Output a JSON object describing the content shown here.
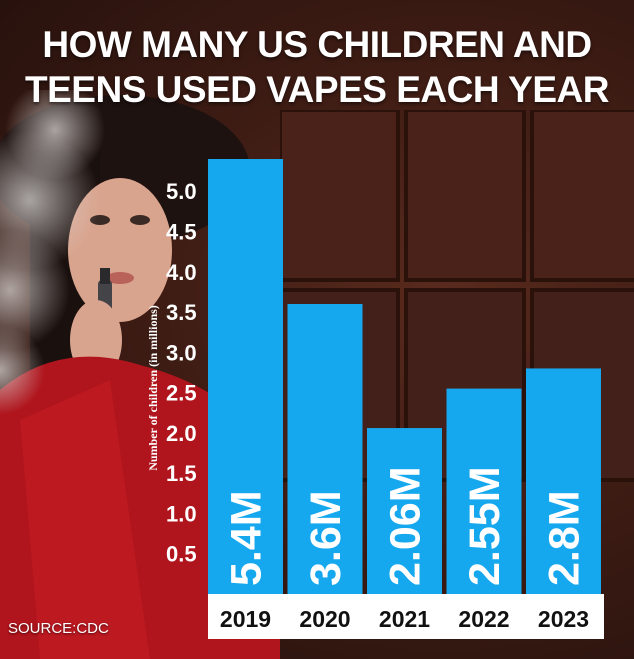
{
  "title": "HOW MANY US CHILDREN AND TEENS USED VAPES EACH YEAR",
  "source": "SOURCE:CDC",
  "colors": {
    "bar": "#16a8ee",
    "axis_band": "#ffffff",
    "text": "#ffffff",
    "year_text": "#111111"
  },
  "chart_data": {
    "type": "bar",
    "title": "HOW MANY US CHILDREN AND TEENS USED VAPES EACH YEAR",
    "categories": [
      "2019",
      "2020",
      "2021",
      "2022",
      "2023"
    ],
    "values": [
      5.4,
      3.6,
      2.06,
      2.55,
      2.8
    ],
    "data_labels": [
      "5.4M",
      "3.6M",
      "2.06M",
      "2.55M",
      "2.8M"
    ],
    "yticks": [
      "0.5",
      "1.0",
      "1.5",
      "2.0",
      "2.5",
      "3.0",
      "3.5",
      "4.0",
      "4.5",
      "5.0"
    ],
    "xlabel": "",
    "ylabel": "Number of children (in millions)",
    "ylim": [
      0,
      5.4
    ],
    "grid": false,
    "legend": "none"
  }
}
